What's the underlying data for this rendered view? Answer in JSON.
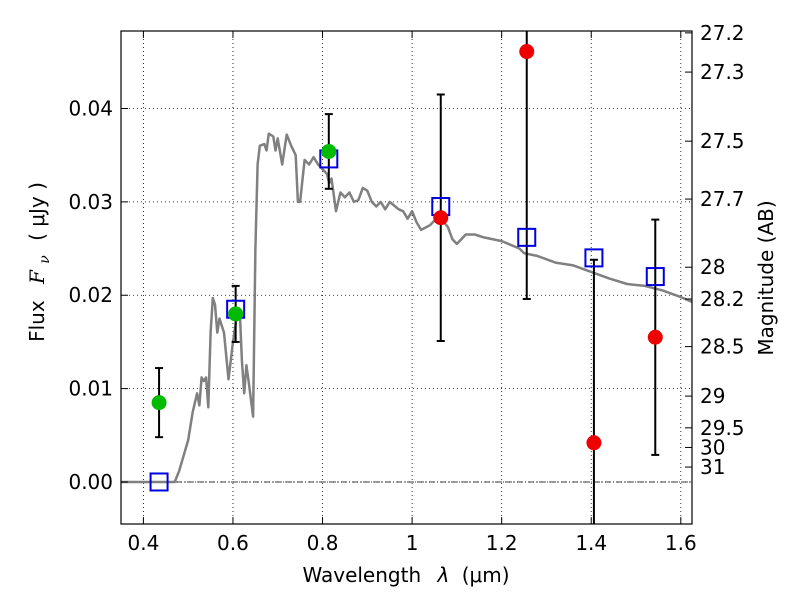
{
  "chart_data": {
    "type": "scatter",
    "xlabel_text": "Wavelength",
    "xlabel_symbol": "λ",
    "xlabel_unit": "(μm)",
    "ylabel_text": "Flux",
    "ylabel_symbol": "F",
    "ylabel_subscript": "ν",
    "ylabel_unit": "( μJy )",
    "y2label": "Magnitude (AB)",
    "xlim": [
      0.35,
      1.625
    ],
    "ylim": [
      -0.0045,
      0.0483
    ],
    "grid": true,
    "x_ticks": [
      0.4,
      0.6,
      0.8,
      1.0,
      1.2,
      1.4,
      1.6
    ],
    "x_tick_labels": [
      "0.4",
      "0.6",
      "0.8",
      "1",
      "1.2",
      "1.4",
      "1.6"
    ],
    "y_ticks": [
      0.0,
      0.01,
      0.02,
      0.03,
      0.04
    ],
    "y_tick_labels": [
      "0.00",
      "0.01",
      "0.02",
      "0.03",
      "0.04"
    ],
    "mag_ticks": [
      {
        "label": "27.2",
        "flux": 0.0481
      },
      {
        "label": "27.3",
        "flux": 0.0439
      },
      {
        "label": "27.5",
        "flux": 0.0365
      },
      {
        "label": "27.7",
        "flux": 0.0303
      },
      {
        "label": "28",
        "flux": 0.023
      },
      {
        "label": "28.2",
        "flux": 0.0196
      },
      {
        "label": "28.5",
        "flux": 0.0145
      },
      {
        "label": "29",
        "flux": 0.0092
      },
      {
        "label": "29.5",
        "flux": 0.0058
      },
      {
        "label": "30",
        "flux": 0.0037
      },
      {
        "label": "31",
        "flux": 0.0016
      }
    ],
    "colors": {
      "sed": "#808080",
      "detected": "#00bb00",
      "undetected": "#ee0000",
      "model": "#0000dd",
      "errorbar": "#000000",
      "zero_line": "#000000"
    },
    "sed_curve": [
      [
        0.35,
        0.0
      ],
      [
        0.47,
        0.0
      ],
      [
        0.48,
        0.0012
      ],
      [
        0.5,
        0.0045
      ],
      [
        0.51,
        0.0075
      ],
      [
        0.52,
        0.0095
      ],
      [
        0.525,
        0.0082
      ],
      [
        0.53,
        0.0112
      ],
      [
        0.535,
        0.0108
      ],
      [
        0.54,
        0.0112
      ],
      [
        0.545,
        0.008
      ],
      [
        0.55,
        0.016
      ],
      [
        0.555,
        0.0197
      ],
      [
        0.56,
        0.019
      ],
      [
        0.565,
        0.016
      ],
      [
        0.57,
        0.0175
      ],
      [
        0.58,
        0.016
      ],
      [
        0.59,
        0.011
      ],
      [
        0.6,
        0.015
      ],
      [
        0.61,
        0.0182
      ],
      [
        0.615,
        0.0185
      ],
      [
        0.62,
        0.013
      ],
      [
        0.625,
        0.0095
      ],
      [
        0.63,
        0.0125
      ],
      [
        0.635,
        0.0108
      ],
      [
        0.645,
        0.007
      ],
      [
        0.65,
        0.025
      ],
      [
        0.655,
        0.034
      ],
      [
        0.66,
        0.036
      ],
      [
        0.67,
        0.0362
      ],
      [
        0.675,
        0.0355
      ],
      [
        0.68,
        0.0373
      ],
      [
        0.69,
        0.037
      ],
      [
        0.695,
        0.0355
      ],
      [
        0.7,
        0.0368
      ],
      [
        0.71,
        0.034
      ],
      [
        0.72,
        0.0372
      ],
      [
        0.73,
        0.036
      ],
      [
        0.74,
        0.035
      ],
      [
        0.745,
        0.03
      ],
      [
        0.75,
        0.03
      ],
      [
        0.76,
        0.0345
      ],
      [
        0.77,
        0.034
      ],
      [
        0.78,
        0.0348
      ],
      [
        0.79,
        0.034
      ],
      [
        0.8,
        0.0335
      ],
      [
        0.81,
        0.033
      ],
      [
        0.815,
        0.032
      ],
      [
        0.82,
        0.0325
      ],
      [
        0.83,
        0.029
      ],
      [
        0.84,
        0.031
      ],
      [
        0.85,
        0.0305
      ],
      [
        0.86,
        0.031
      ],
      [
        0.87,
        0.03
      ],
      [
        0.88,
        0.0302
      ],
      [
        0.89,
        0.0315
      ],
      [
        0.9,
        0.0312
      ],
      [
        0.91,
        0.03
      ],
      [
        0.92,
        0.0295
      ],
      [
        0.93,
        0.03
      ],
      [
        0.94,
        0.0292
      ],
      [
        0.95,
        0.03
      ],
      [
        0.96,
        0.0296
      ],
      [
        0.97,
        0.0292
      ],
      [
        0.98,
        0.029
      ],
      [
        0.99,
        0.0282
      ],
      [
        1.0,
        0.029
      ],
      [
        1.01,
        0.0278
      ],
      [
        1.02,
        0.027
      ],
      [
        1.04,
        0.0275
      ],
      [
        1.06,
        0.0285
      ],
      [
        1.08,
        0.0273
      ],
      [
        1.09,
        0.026
      ],
      [
        1.1,
        0.0255
      ],
      [
        1.12,
        0.0265
      ],
      [
        1.14,
        0.0265
      ],
      [
        1.16,
        0.0262
      ],
      [
        1.2,
        0.0258
      ],
      [
        1.24,
        0.025
      ],
      [
        1.25,
        0.0245
      ],
      [
        1.28,
        0.0242
      ],
      [
        1.32,
        0.0235
      ],
      [
        1.36,
        0.0232
      ],
      [
        1.4,
        0.0225
      ],
      [
        1.44,
        0.0218
      ],
      [
        1.48,
        0.0212
      ],
      [
        1.52,
        0.021
      ],
      [
        1.56,
        0.0205
      ],
      [
        1.6,
        0.0198
      ],
      [
        1.625,
        0.0193
      ]
    ],
    "series": [
      {
        "role": "detected",
        "marker": "circle",
        "points": [
          {
            "x": 0.435,
            "y": 0.0085,
            "err": 0.0037
          },
          {
            "x": 0.606,
            "y": 0.018,
            "err": 0.003
          },
          {
            "x": 0.814,
            "y": 0.0354,
            "err": 0.004
          }
        ]
      },
      {
        "role": "undetected",
        "marker": "circle",
        "points": [
          {
            "x": 1.064,
            "y": 0.0283,
            "err": 0.0132
          },
          {
            "x": 1.256,
            "y": 0.0461,
            "err": 0.0265
          },
          {
            "x": 1.406,
            "y": 0.0042,
            "err": 0.0196
          },
          {
            "x": 1.543,
            "y": 0.0155,
            "err": 0.0126
          }
        ]
      },
      {
        "role": "model",
        "marker": "square",
        "points": [
          {
            "x": 0.435,
            "y": 0.0
          },
          {
            "x": 0.606,
            "y": 0.0185
          },
          {
            "x": 0.814,
            "y": 0.0346
          },
          {
            "x": 1.064,
            "y": 0.0295
          },
          {
            "x": 1.256,
            "y": 0.0262
          },
          {
            "x": 1.406,
            "y": 0.024
          },
          {
            "x": 1.543,
            "y": 0.022
          }
        ]
      }
    ]
  }
}
